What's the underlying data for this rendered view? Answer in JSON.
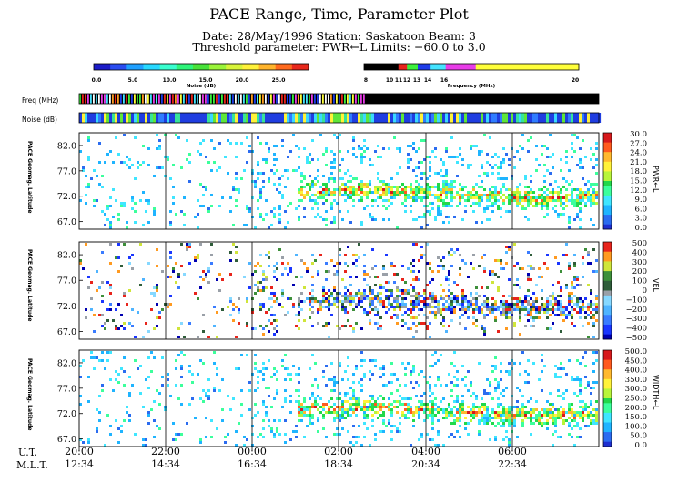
{
  "header": {
    "title": "PACE Range, Time, Parameter Plot",
    "line1": "Date: 28/May/1996  Station: Saskatoon  Beam: 3",
    "line2": "Threshold parameter: PWR←L      Limits: −60.0 to  3.0"
  },
  "noise_scale": {
    "ticks": [
      "0.0",
      "5.0",
      "10.0",
      "15.0",
      "20.0",
      "25.0"
    ],
    "label": "Noise (dB)"
  },
  "freq_scale": {
    "ticks": [
      "8",
      "10",
      "11",
      "12",
      "13",
      "14",
      "16",
      "20"
    ],
    "label": "Frequency (MHz)"
  },
  "strips": {
    "freq_label": "Freq (MHz)",
    "noise_label": "Noise (dB)"
  },
  "chart_data": [
    {
      "type": "heatmap",
      "panel": "power",
      "ylabel": "PACE Geomag. Latitude",
      "yticks": [
        "82.0",
        "77.0",
        "72.0",
        "67.0"
      ],
      "ylim": [
        65.5,
        84.5
      ],
      "colorbar_label": "PWR←L",
      "colorbar_ticks": [
        "30.0",
        "27.0",
        "24.0",
        "21.0",
        "18.0",
        "15.0",
        "12.0",
        "9.0",
        "6.0",
        "3.0",
        "0.0"
      ],
      "colorbar_range": [
        0,
        30
      ]
    },
    {
      "type": "heatmap",
      "panel": "velocity",
      "ylabel": "PACE Geomag. Latitude",
      "yticks": [
        "82.0",
        "77.0",
        "72.0",
        "67.0"
      ],
      "ylim": [
        65.5,
        84.5
      ],
      "colorbar_label": "VEL",
      "colorbar_ticks": [
        "500",
        "400",
        "300",
        "200",
        "100",
        "0",
        "−100",
        "−200",
        "−300",
        "−400",
        "−500"
      ],
      "colorbar_range": [
        -500,
        500
      ]
    },
    {
      "type": "heatmap",
      "panel": "width",
      "ylabel": "PACE Geomag. Latitude",
      "yticks": [
        "82.0",
        "77.0",
        "72.0",
        "67.0"
      ],
      "ylim": [
        65.5,
        84.5
      ],
      "colorbar_label": "WIDTH←L",
      "colorbar_ticks": [
        "500.0",
        "450.0",
        "400.0",
        "350.0",
        "300.0",
        "250.0",
        "200.0",
        "150.0",
        "100.0",
        "50.0",
        "0.0"
      ],
      "colorbar_range": [
        0,
        500
      ]
    }
  ],
  "time_axis": {
    "ut_label": "U.T.",
    "mlt_label": "M.L.T.",
    "ut": [
      "20:00",
      "22:00",
      "00:00",
      "02:00",
      "04:00",
      "06:00"
    ],
    "mlt": [
      "12:34",
      "14:34",
      "16:34",
      "18:34",
      "20:34",
      "22:34"
    ]
  },
  "colors": {
    "frame": "#000000",
    "background": "#ffffff"
  }
}
